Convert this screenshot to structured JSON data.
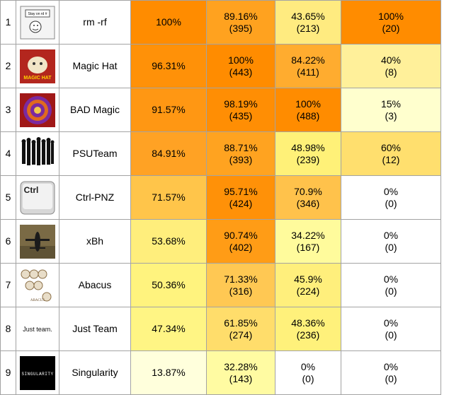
{
  "rows": [
    {
      "rank": "1",
      "team": "rm -rf",
      "logo": "rm-rf-logo",
      "logo_text": "Stay on rd #",
      "overall": "100%",
      "c2": {
        "pct": "89.16%",
        "count": "(395)"
      },
      "c3": {
        "pct": "43.65%",
        "count": "(213)"
      },
      "c4": {
        "pct": "100%",
        "count": "(20)"
      },
      "colors": {
        "overall": "#ff8c00",
        "c2": "#ffa21f",
        "c3": "#ffeb80",
        "c4": "#ff8c00"
      }
    },
    {
      "rank": "2",
      "team": "Magic Hat",
      "logo": "magic-hat-logo",
      "logo_text": "MAGIC HAT",
      "overall": "96.31%",
      "c2": {
        "pct": "100%",
        "count": "(443)"
      },
      "c3": {
        "pct": "84.22%",
        "count": "(411)"
      },
      "c4": {
        "pct": "40%",
        "count": "(8)"
      },
      "colors": {
        "overall": "#ff9108",
        "c2": "#ff8c00",
        "c3": "#ffac2f",
        "c4": "#fff09a"
      }
    },
    {
      "rank": "3",
      "team": "BAD Magic",
      "logo": "bad-magic-logo",
      "logo_text": "",
      "overall": "91.57%",
      "c2": {
        "pct": "98.19%",
        "count": "(435)"
      },
      "c3": {
        "pct": "100%",
        "count": "(488)"
      },
      "c4": {
        "pct": "15%",
        "count": "(3)"
      },
      "colors": {
        "overall": "#ff9713",
        "c2": "#ff8e04",
        "c3": "#ff8c00",
        "c4": "#ffffce"
      }
    },
    {
      "rank": "4",
      "team": "PSUTeam",
      "logo": "psu-team-logo",
      "logo_text": "",
      "overall": "84.91%",
      "c2": {
        "pct": "88.71%",
        "count": "(393)"
      },
      "c3": {
        "pct": "48.98%",
        "count": "(239)"
      },
      "c4": {
        "pct": "60%",
        "count": "(12)"
      },
      "colors": {
        "overall": "#ffa224",
        "c2": "#ffa320",
        "c3": "#fff178",
        "c4": "#ffdf6e"
      }
    },
    {
      "rank": "5",
      "team": "Ctrl-PNZ",
      "logo": "ctrl-pnz-logo",
      "logo_text": "Ctrl",
      "overall": "71.57%",
      "c2": {
        "pct": "95.71%",
        "count": "(424)"
      },
      "c3": {
        "pct": "70.9%",
        "count": "(346)"
      },
      "c4": {
        "pct": "0%",
        "count": "(0)"
      },
      "colors": {
        "overall": "#ffc54a",
        "c2": "#ff9108",
        "c3": "#ffc24b",
        "c4": "#ffffff"
      }
    },
    {
      "rank": "6",
      "team": "xBh",
      "logo": "xbh-logo",
      "logo_text": "",
      "overall": "53.68%",
      "c2": {
        "pct": "90.74%",
        "count": "(402)"
      },
      "c3": {
        "pct": "34.22%",
        "count": "(167)"
      },
      "c4": {
        "pct": "0%",
        "count": "(0)"
      },
      "colors": {
        "overall": "#ffee7c",
        "c2": "#ff9c16",
        "c3": "#fffb9c",
        "c4": "#ffffff"
      }
    },
    {
      "rank": "7",
      "team": "Abacus",
      "logo": "abacus-logo",
      "logo_text": "ABACUS",
      "overall": "50.36%",
      "c2": {
        "pct": "71.33%",
        "count": "(316)"
      },
      "c3": {
        "pct": "45.9%",
        "count": "(224)"
      },
      "c4": {
        "pct": "0%",
        "count": "(0)"
      },
      "colors": {
        "overall": "#fff37e",
        "c2": "#ffc853",
        "c3": "#ffef7c",
        "c4": "#ffffff"
      }
    },
    {
      "rank": "8",
      "team": "Just Team",
      "logo": "just-team-logo",
      "logo_text": "Just team.",
      "overall": "47.34%",
      "c2": {
        "pct": "61.85%",
        "count": "(274)"
      },
      "c3": {
        "pct": "48.36%",
        "count": "(236)"
      },
      "c4": {
        "pct": "0%",
        "count": "(0)"
      },
      "colors": {
        "overall": "#fff584",
        "c2": "#ffdd6b",
        "c3": "#fff17b",
        "c4": "#ffffff"
      }
    },
    {
      "rank": "9",
      "team": "Singularity",
      "logo": "singularity-logo",
      "logo_text": "SINGULARITY",
      "overall": "13.87%",
      "c2": {
        "pct": "32.28%",
        "count": "(143)"
      },
      "c3": {
        "pct": "0%",
        "count": "(0)"
      },
      "c4": {
        "pct": "0%",
        "count": "(0)"
      },
      "colors": {
        "overall": "#ffffdc",
        "c2": "#fffba2",
        "c3": "#ffffff",
        "c4": "#ffffff"
      }
    }
  ]
}
